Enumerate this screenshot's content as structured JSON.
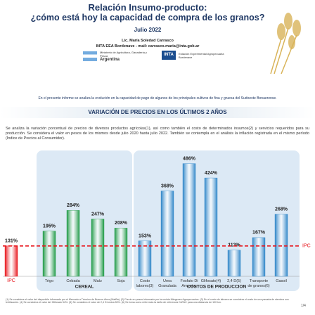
{
  "header": {
    "title": "Relación Insumo-producto:",
    "subtitle": "¿cómo está hoy la capacidad de compra de los granos?",
    "date": "Julio 2022",
    "author": "Lic. María Soledad Carrasco",
    "affiliation": "INTA EEA Bordenave - mail: carrasco.maria@inta.gob.ar"
  },
  "logos": {
    "ministry": "Ministerio de Agricultura, Ganadería y Pesca",
    "country": "Argentina",
    "inta": "INTA",
    "station": "Estación Experimental Agropecuaria Bordenave"
  },
  "intro": "En el presente informe se analiza la evolución en la capacidad de pago de algunos de los principales cultivos de fina y gruesa del Sudoeste Bonaerense.",
  "section_title": "VARIACIÓN DE PRECIOS EN LOS ÚLTIMOS 2 AÑOS",
  "paragraph": "Se analiza la variación porcentual de precios de diversos productos agrícolas(1), así como también el costo de determinados insumos(2) y servicios requeridos para su producción. Se considera el valor en pesos de los mismos desde julio 2020 hasta julio 2022. También se contempla en el análisis la inflación registrada en el mismo período (Índice de Precios al Consumidor).",
  "chart_data": {
    "type": "bar",
    "categories": [
      "IPC",
      "Trigo",
      "Cebada",
      "Maíz",
      "Soja",
      "Costo labores(3)",
      "Urea Granulada",
      "Fosfato Di Amonico",
      "Glifosato(4)",
      "2,4 D(5)",
      "Transporte de granos(6)",
      "Gasoil"
    ],
    "values": [
      131,
      195,
      284,
      247,
      208,
      153,
      368,
      486,
      424,
      113,
      167,
      268
    ],
    "value_labels": [
      "131%",
      "195%",
      "284%",
      "247%",
      "208%",
      "153%",
      "368%",
      "486%",
      "424%",
      "113%",
      "167%",
      "268%"
    ],
    "colors": [
      "#e8141b",
      "#1e9a45",
      "#1e9a45",
      "#1e9a45",
      "#1e9a45",
      "#2f86c8",
      "#2f86c8",
      "#2f86c8",
      "#2f86c8",
      "#2f86c8",
      "#2f86c8",
      "#2f86c8"
    ],
    "reference_label": "IPC",
    "reference_color": "#e8141b",
    "groups": [
      "CEREAL",
      "COSTOS DE PRODUCCION"
    ]
  },
  "footnotes": "(1) Se considera el valor del disponible informado por el Mercado a Término de Buenos Aires (MatBa). (2) Precio en pesos informado por la revista Márgenes Agropecuarios. (3) En el costo de labores se considera el costo de una pasada de siembra con fertilización. (4) Se considera el valor del Glifosato 54%. (5) Se considera el valor de 2,4 D Amina 50%. (6) Se toma como referencia la tarifa de referencia CATAC para una distancia de 100 km.",
  "page": "1/4"
}
